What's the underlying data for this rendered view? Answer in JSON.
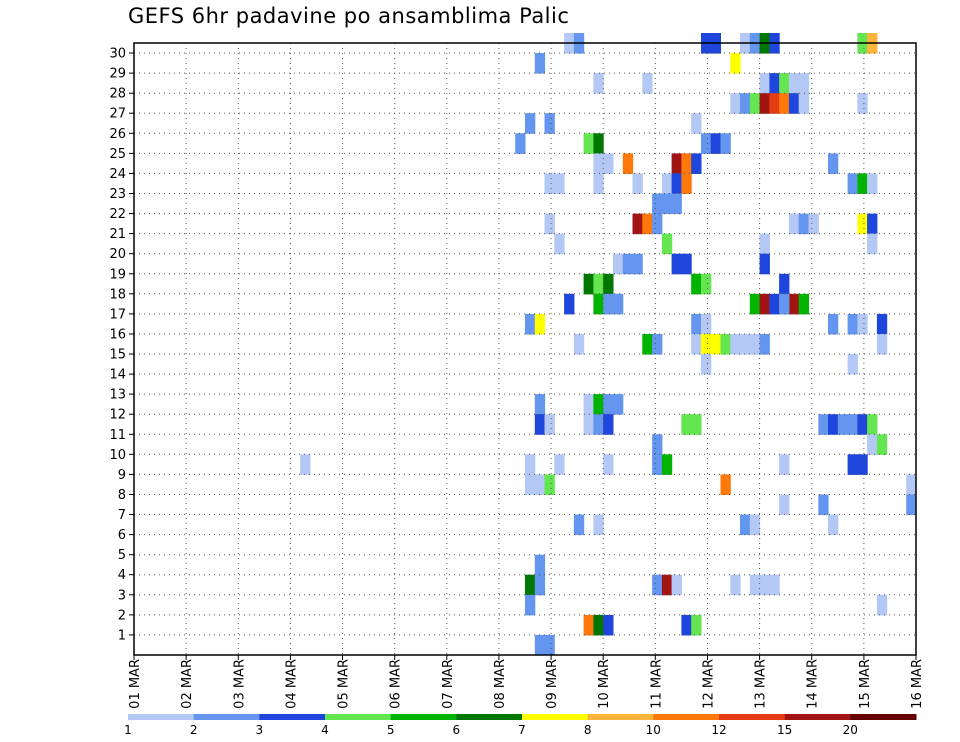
{
  "chart_data": {
    "type": "heatmap",
    "title": "GEFS 6hr padavine po ansamblima Palic",
    "xlabel": "",
    "ylabel": "",
    "x_ticks": [
      "01 MAR",
      "02 MAR",
      "03 MAR",
      "04 MAR",
      "05 MAR",
      "06 MAR",
      "07 MAR",
      "08 MAR",
      "09 MAR",
      "10 MAR",
      "11 MAR",
      "12 MAR",
      "13 MAR",
      "14 MAR",
      "15 MAR",
      "16 MAR"
    ],
    "y_ticks": [
      "1",
      "2",
      "3",
      "4",
      "5",
      "6",
      "7",
      "8",
      "9",
      "10",
      "11",
      "12",
      "13",
      "14",
      "15",
      "16",
      "17",
      "18",
      "19",
      "20",
      "21",
      "22",
      "23",
      "24",
      "25",
      "26",
      "27",
      "28",
      "29",
      "30"
    ],
    "xlim": [
      "01 MAR 00Z",
      "16 MAR 00Z"
    ],
    "ylim": [
      0,
      30
    ],
    "grid": true,
    "x_unit": "6-hour step (0 = 01 MAR 00Z)",
    "cells": [
      [
        58,
        30,
        3
      ],
      [
        59,
        30,
        3
      ],
      [
        62,
        30,
        1
      ],
      [
        63,
        30,
        2
      ],
      [
        64,
        30,
        6
      ],
      [
        65,
        30,
        3
      ],
      [
        74,
        30,
        4
      ],
      [
        75,
        30,
        8
      ],
      [
        44,
        30,
        1
      ],
      [
        45,
        30,
        2
      ],
      [
        41,
        29,
        2
      ],
      [
        61,
        29,
        7
      ],
      [
        47,
        28,
        1
      ],
      [
        64,
        28,
        1
      ],
      [
        65,
        28,
        3
      ],
      [
        66,
        28,
        4
      ],
      [
        67,
        28,
        1
      ],
      [
        68,
        28,
        1
      ],
      [
        52,
        28,
        1
      ],
      [
        61,
        27,
        1
      ],
      [
        62,
        27,
        2
      ],
      [
        63,
        27,
        4
      ],
      [
        64,
        27,
        11
      ],
      [
        65,
        27,
        10
      ],
      [
        66,
        27,
        9
      ],
      [
        67,
        27,
        3
      ],
      [
        68,
        27,
        1
      ],
      [
        74,
        27,
        1
      ],
      [
        40,
        26,
        2
      ],
      [
        42,
        26,
        2
      ],
      [
        57,
        26,
        1
      ],
      [
        39,
        25,
        2
      ],
      [
        46,
        25,
        4
      ],
      [
        47,
        25,
        6
      ],
      [
        58,
        25,
        2
      ],
      [
        59,
        25,
        3
      ],
      [
        60,
        25,
        2
      ],
      [
        47,
        24,
        1
      ],
      [
        48,
        24,
        1
      ],
      [
        50,
        24,
        9
      ],
      [
        55,
        24,
        11
      ],
      [
        56,
        24,
        9
      ],
      [
        57,
        24,
        3
      ],
      [
        71,
        24,
        2
      ],
      [
        42,
        23,
        1
      ],
      [
        43,
        23,
        1
      ],
      [
        47,
        23,
        1
      ],
      [
        51,
        23,
        1
      ],
      [
        54,
        23,
        1
      ],
      [
        55,
        23,
        3
      ],
      [
        56,
        23,
        9
      ],
      [
        73,
        23,
        2
      ],
      [
        74,
        23,
        5
      ],
      [
        75,
        23,
        1
      ],
      [
        53,
        22,
        2
      ],
      [
        54,
        22,
        2
      ],
      [
        55,
        22,
        2
      ],
      [
        42,
        21,
        1
      ],
      [
        51,
        21,
        11
      ],
      [
        52,
        21,
        9
      ],
      [
        53,
        21,
        2
      ],
      [
        67,
        21,
        1
      ],
      [
        68,
        21,
        2
      ],
      [
        69,
        21,
        1
      ],
      [
        74,
        21,
        7
      ],
      [
        75,
        21,
        3
      ],
      [
        43,
        20,
        1
      ],
      [
        54,
        20,
        4
      ],
      [
        64,
        20,
        1
      ],
      [
        75,
        20,
        1
      ],
      [
        49,
        19,
        1
      ],
      [
        50,
        19,
        2
      ],
      [
        51,
        19,
        2
      ],
      [
        55,
        19,
        3
      ],
      [
        56,
        19,
        3
      ],
      [
        64,
        19,
        3
      ],
      [
        46,
        18,
        6
      ],
      [
        47,
        18,
        4
      ],
      [
        48,
        18,
        6
      ],
      [
        57,
        18,
        5
      ],
      [
        58,
        18,
        4
      ],
      [
        66,
        18,
        3
      ],
      [
        44,
        17,
        3
      ],
      [
        47,
        17,
        5
      ],
      [
        48,
        17,
        2
      ],
      [
        49,
        17,
        2
      ],
      [
        63,
        17,
        5
      ],
      [
        64,
        17,
        11
      ],
      [
        65,
        17,
        3
      ],
      [
        66,
        17,
        6
      ],
      [
        67,
        17,
        11
      ],
      [
        68,
        17,
        5
      ],
      [
        66,
        17,
        2
      ],
      [
        40,
        16,
        2
      ],
      [
        41,
        16,
        7
      ],
      [
        57,
        16,
        2
      ],
      [
        58,
        16,
        1
      ],
      [
        71,
        16,
        2
      ],
      [
        73,
        16,
        2
      ],
      [
        74,
        16,
        1
      ],
      [
        76,
        16,
        3
      ],
      [
        45,
        15,
        1
      ],
      [
        52,
        15,
        5
      ],
      [
        53,
        15,
        2
      ],
      [
        57,
        15,
        1
      ],
      [
        58,
        15,
        7
      ],
      [
        59,
        15,
        7
      ],
      [
        60,
        15,
        4
      ],
      [
        61,
        15,
        1
      ],
      [
        62,
        15,
        1
      ],
      [
        63,
        15,
        1
      ],
      [
        64,
        15,
        2
      ],
      [
        76,
        15,
        1
      ],
      [
        58,
        14,
        1
      ],
      [
        73,
        14,
        1
      ],
      [
        41,
        12,
        2
      ],
      [
        46,
        12,
        1
      ],
      [
        47,
        12,
        5
      ],
      [
        48,
        12,
        2
      ],
      [
        49,
        12,
        2
      ],
      [
        41,
        11,
        3
      ],
      [
        42,
        11,
        1
      ],
      [
        46,
        11,
        1
      ],
      [
        47,
        11,
        2
      ],
      [
        48,
        11,
        3
      ],
      [
        56,
        11,
        4
      ],
      [
        57,
        11,
        4
      ],
      [
        70,
        11,
        2
      ],
      [
        71,
        11,
        3
      ],
      [
        72,
        11,
        2
      ],
      [
        73,
        11,
        2
      ],
      [
        74,
        11,
        3
      ],
      [
        75,
        11,
        4
      ],
      [
        53,
        10,
        2
      ],
      [
        75,
        10,
        1
      ],
      [
        76,
        10,
        4
      ],
      [
        17,
        9,
        1
      ],
      [
        40,
        9,
        1
      ],
      [
        43,
        9,
        1
      ],
      [
        48,
        9,
        1
      ],
      [
        53,
        9,
        2
      ],
      [
        54,
        9,
        5
      ],
      [
        66,
        9,
        1
      ],
      [
        73,
        9,
        3
      ],
      [
        74,
        9,
        3
      ],
      [
        40,
        8,
        1
      ],
      [
        41,
        8,
        1
      ],
      [
        42,
        8,
        4
      ],
      [
        60,
        8,
        9
      ],
      [
        79,
        8,
        1
      ],
      [
        66,
        7,
        1
      ],
      [
        70,
        7,
        2
      ],
      [
        79,
        7,
        2
      ],
      [
        45,
        6,
        2
      ],
      [
        47,
        6,
        1
      ],
      [
        62,
        6,
        2
      ],
      [
        63,
        6,
        1
      ],
      [
        71,
        6,
        1
      ],
      [
        41,
        4,
        2
      ],
      [
        40,
        3,
        6
      ],
      [
        41,
        3,
        2
      ],
      [
        53,
        3,
        2
      ],
      [
        54,
        3,
        11
      ],
      [
        55,
        3,
        1
      ],
      [
        61,
        3,
        1
      ],
      [
        63,
        3,
        1
      ],
      [
        64,
        3,
        1
      ],
      [
        65,
        3,
        1
      ],
      [
        40,
        2,
        2
      ],
      [
        76,
        2,
        1
      ],
      [
        46,
        1,
        9
      ],
      [
        47,
        1,
        6
      ],
      [
        48,
        1,
        3
      ],
      [
        56,
        1,
        3
      ],
      [
        57,
        1,
        4
      ],
      [
        41,
        0,
        2
      ],
      [
        42,
        0,
        2
      ]
    ],
    "colorbar": {
      "labels": [
        "1",
        "2",
        "3",
        "4",
        "5",
        "6",
        "7",
        "8",
        "10",
        "12",
        "15",
        "20"
      ],
      "colors": [
        "#b4c8f5",
        "#6496f0",
        "#1e46dc",
        "#64e650",
        "#00b400",
        "#007800",
        "#ffff00",
        "#ffb43c",
        "#ff780a",
        "#e63c14",
        "#a01414",
        "#640000"
      ]
    }
  }
}
